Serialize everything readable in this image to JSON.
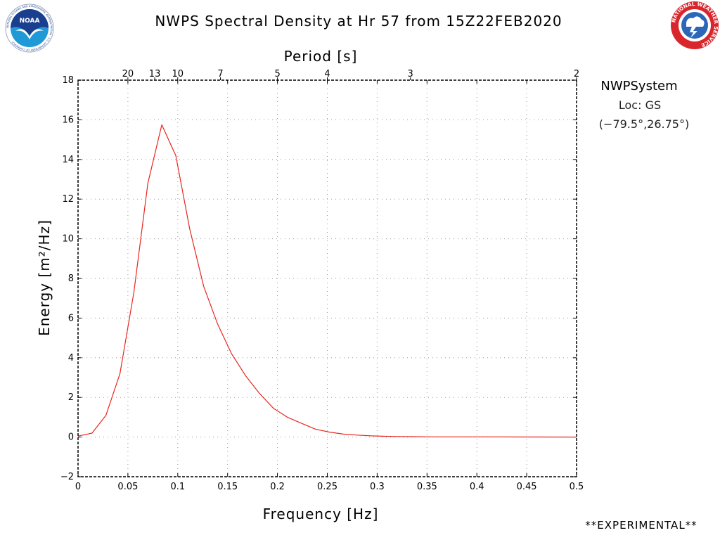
{
  "header": {
    "title": "NWPS Spectral Density at Hr 57 from 15Z22FEB2020",
    "noaa_logo": {
      "label": "NOAA",
      "ring_text": "NATIONAL OCEANIC AND ATMOSPHERIC ADMINISTRATION · U.S. DEPARTMENT OF COMMERCE",
      "colors": {
        "ring": "#ffffff",
        "sky": "#1b3f8f",
        "sea": "#1f9ad6",
        "bird": "#ffffff"
      }
    },
    "nws_logo": {
      "ring_text": "NATIONAL WEATHER SERVICE",
      "colors": {
        "ring": "#d9262c",
        "field": "#2b66b8",
        "text": "#ffffff"
      }
    }
  },
  "info": {
    "system": "NWPSystem",
    "location": "Loc: GS",
    "coords": "(−79.5°,26.75°)"
  },
  "footer": {
    "status": "**EXPERIMENTAL**"
  },
  "chart_data": {
    "type": "line",
    "title": "NWPS Spectral Density at Hr 57 from 15Z22FEB2020",
    "xlabel": "Frequency [Hz]",
    "ylabel": "Energy [m²/Hz]",
    "top_axis_label": "Period [s]",
    "xlim": [
      0,
      0.5
    ],
    "ylim": [
      -2,
      18
    ],
    "x_ticks": [
      0,
      0.05,
      0.1,
      0.15,
      0.2,
      0.25,
      0.3,
      0.35,
      0.4,
      0.45,
      0.5
    ],
    "x_tick_labels": [
      "0",
      "0.05",
      "0.1",
      "0.15",
      "0.2",
      "0.25",
      "0.3",
      "0.35",
      "0.4",
      "0.45",
      "0.5"
    ],
    "y_ticks": [
      -2,
      0,
      2,
      4,
      6,
      8,
      10,
      12,
      14,
      16,
      18
    ],
    "y_tick_labels": [
      "−2",
      "0",
      "2",
      "4",
      "6",
      "8",
      "10",
      "12",
      "14",
      "16",
      "18"
    ],
    "top_ticks": [
      {
        "period": 20,
        "label": "20"
      },
      {
        "period": 13,
        "label": "13"
      },
      {
        "period": 10,
        "label": "10"
      },
      {
        "period": 7,
        "label": "7"
      },
      {
        "period": 5,
        "label": "5"
      },
      {
        "period": 4,
        "label": "4"
      },
      {
        "period": 3,
        "label": "3"
      },
      {
        "period": 2,
        "label": "2"
      }
    ],
    "grid": true,
    "line_color": "#e8261c",
    "series": [
      {
        "x": [
          0,
          0.014,
          0.028,
          0.042,
          0.056,
          0.07,
          0.084,
          0.098,
          0.112,
          0.126,
          0.14,
          0.154,
          0.168,
          0.182,
          0.196,
          0.21,
          0.224,
          0.238,
          0.252,
          0.266,
          0.28,
          0.294,
          0.308,
          0.322,
          0.336,
          0.35,
          0.4,
          0.45,
          0.5
        ],
        "y": [
          0.05,
          0.2,
          1.1,
          3.2,
          7.3,
          12.8,
          15.75,
          14.2,
          10.5,
          7.6,
          5.7,
          4.2,
          3.1,
          2.2,
          1.45,
          1.0,
          0.7,
          0.4,
          0.25,
          0.15,
          0.1,
          0.06,
          0.04,
          0.03,
          0.02,
          0.01,
          0.01,
          0.005,
          0.0
        ]
      }
    ]
  }
}
